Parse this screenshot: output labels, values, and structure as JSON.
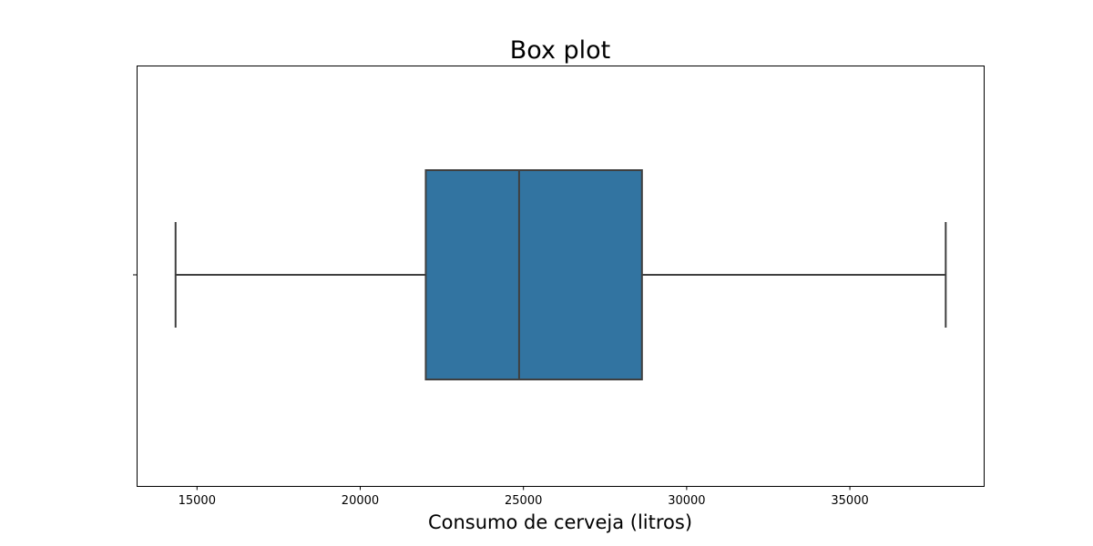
{
  "chart_data": {
    "type": "boxplot",
    "title": "Box plot",
    "xlabel": "Consumo de cerveja (litros)",
    "ylabel": "",
    "orientation": "horizontal",
    "xlim": [
      13150,
      39100
    ],
    "xticks": [
      15000,
      20000,
      25000,
      30000,
      35000
    ],
    "xtick_labels": [
      "15000",
      "20000",
      "25000",
      "30000",
      "35000"
    ],
    "grid": false,
    "box": {
      "whisker_low": 14343,
      "q1": 22008,
      "median": 24867,
      "q3": 28631,
      "whisker_high": 37937
    },
    "colors": {
      "box_fill": "#3274a1",
      "line": "#3f3f3f",
      "axes": "#000000"
    }
  }
}
